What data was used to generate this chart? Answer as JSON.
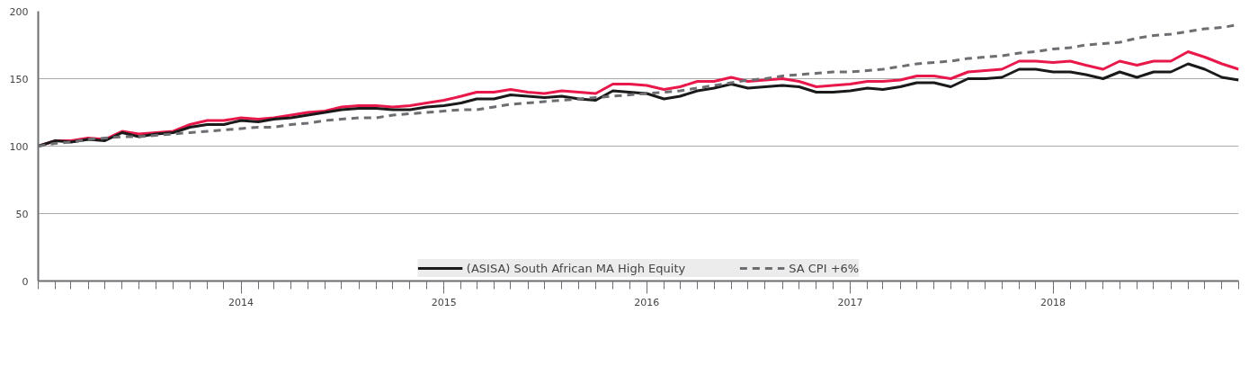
{
  "chart_data": {
    "type": "line",
    "x": [
      "2013-01",
      "2013-02",
      "2013-03",
      "2013-04",
      "2013-05",
      "2013-06",
      "2013-07",
      "2013-08",
      "2013-09",
      "2013-10",
      "2013-11",
      "2013-12",
      "2014-01",
      "2014-02",
      "2014-03",
      "2014-04",
      "2014-05",
      "2014-06",
      "2014-07",
      "2014-08",
      "2014-09",
      "2014-10",
      "2014-11",
      "2014-12",
      "2015-01",
      "2015-02",
      "2015-03",
      "2015-04",
      "2015-05",
      "2015-06",
      "2015-07",
      "2015-08",
      "2015-09",
      "2015-10",
      "2015-11",
      "2015-12",
      "2016-01",
      "2016-02",
      "2016-03",
      "2016-04",
      "2016-05",
      "2016-06",
      "2016-07",
      "2016-08",
      "2016-09",
      "2016-10",
      "2016-11",
      "2016-12",
      "2017-01",
      "2017-02",
      "2017-03",
      "2017-04",
      "2017-05",
      "2017-06",
      "2017-07",
      "2017-08",
      "2017-09",
      "2017-10",
      "2017-11",
      "2017-12",
      "2018-01",
      "2018-02",
      "2018-03",
      "2018-04",
      "2018-05",
      "2018-06",
      "2018-07",
      "2018-08",
      "2018-09",
      "2018-10",
      "2018-11",
      "2018-12"
    ],
    "series": [
      {
        "color": "#e8194a",
        "line_style": "solid",
        "values": [
          100,
          104,
          104,
          106,
          105,
          111,
          109,
          110,
          111,
          116,
          119,
          119,
          121,
          120,
          121,
          123,
          125,
          126,
          129,
          130,
          130,
          129,
          130,
          132,
          134,
          137,
          140,
          140,
          142,
          140,
          139,
          141,
          140,
          139,
          146,
          146,
          145,
          142,
          144,
          148,
          148,
          151,
          148,
          149,
          150,
          148,
          144,
          145,
          146,
          148,
          148,
          149,
          152,
          152,
          150,
          155,
          156,
          157,
          163,
          163,
          162,
          163,
          160,
          157,
          163,
          160,
          163,
          163,
          170,
          166,
          161,
          157
        ]
      },
      {
        "name": "(ASISA) South African MA High Equity",
        "color": "#1a1a1a",
        "line_style": "solid",
        "values": [
          100,
          104,
          103,
          105,
          104,
          110,
          107,
          109,
          110,
          114,
          116,
          116,
          119,
          118,
          120,
          121,
          123,
          125,
          127,
          128,
          128,
          127,
          127,
          129,
          130,
          132,
          135,
          135,
          138,
          137,
          136,
          137,
          135,
          134,
          141,
          140,
          139,
          135,
          137,
          141,
          143,
          146,
          143,
          144,
          145,
          144,
          140,
          140,
          141,
          143,
          142,
          144,
          147,
          147,
          144,
          150,
          150,
          151,
          157,
          157,
          155,
          155,
          153,
          150,
          155,
          151,
          155,
          155,
          161,
          157,
          151,
          149
        ]
      },
      {
        "name": "SA CPI +6%",
        "color": "#6d6e71",
        "line_style": "dashed",
        "values": [
          100,
          102,
          103,
          105,
          106,
          107,
          107,
          108,
          109,
          110,
          111,
          112,
          113,
          114,
          114,
          116,
          117,
          119,
          120,
          121,
          121,
          123,
          124,
          125,
          126,
          127,
          127,
          129,
          131,
          132,
          133,
          134,
          135,
          136,
          137,
          138,
          139,
          140,
          141,
          143,
          145,
          147,
          149,
          150,
          152,
          153,
          154,
          155,
          155,
          156,
          157,
          159,
          161,
          162,
          163,
          165,
          166,
          167,
          169,
          170,
          172,
          173,
          175,
          176,
          177,
          180,
          182,
          183,
          185,
          187,
          188,
          190
        ]
      }
    ],
    "xlim": [
      "2013-01",
      "2018-12"
    ],
    "xticks": [
      {
        "value": "2013-01",
        "label": null
      },
      {
        "value": "2013-02",
        "label": null
      },
      {
        "value": "2013-03",
        "label": null
      },
      {
        "value": "2013-04",
        "label": null
      },
      {
        "value": "2013-05",
        "label": null
      },
      {
        "value": "2013-06",
        "label": null
      },
      {
        "value": "2013-07",
        "label": null
      },
      {
        "value": "2013-08",
        "label": null
      },
      {
        "value": "2013-09",
        "label": null
      },
      {
        "value": "2013-10",
        "label": null
      },
      {
        "value": "2013-11",
        "label": null
      },
      {
        "value": "2013-12",
        "label": null
      },
      {
        "value": "2014-01",
        "label": "2014"
      },
      {
        "value": "2014-02",
        "label": null
      },
      {
        "value": "2014-03",
        "label": null
      },
      {
        "value": "2014-04",
        "label": null
      },
      {
        "value": "2014-05",
        "label": null
      },
      {
        "value": "2014-06",
        "label": null
      },
      {
        "value": "2014-07",
        "label": null
      },
      {
        "value": "2014-08",
        "label": null
      },
      {
        "value": "2014-09",
        "label": null
      },
      {
        "value": "2014-10",
        "label": null
      },
      {
        "value": "2014-11",
        "label": null
      },
      {
        "value": "2014-12",
        "label": null
      },
      {
        "value": "2015-01",
        "label": "2015"
      },
      {
        "value": "2015-02",
        "label": null
      },
      {
        "value": "2015-03",
        "label": null
      },
      {
        "value": "2015-04",
        "label": null
      },
      {
        "value": "2015-05",
        "label": null
      },
      {
        "value": "2015-06",
        "label": null
      },
      {
        "value": "2015-07",
        "label": null
      },
      {
        "value": "2015-08",
        "label": null
      },
      {
        "value": "2015-09",
        "label": null
      },
      {
        "value": "2015-10",
        "label": null
      },
      {
        "value": "2015-11",
        "label": null
      },
      {
        "value": "2015-12",
        "label": null
      },
      {
        "value": "2016-01",
        "label": "2016"
      },
      {
        "value": "2016-02",
        "label": null
      },
      {
        "value": "2016-03",
        "label": null
      },
      {
        "value": "2016-04",
        "label": null
      },
      {
        "value": "2016-05",
        "label": null
      },
      {
        "value": "2016-06",
        "label": null
      },
      {
        "value": "2016-07",
        "label": null
      },
      {
        "value": "2016-08",
        "label": null
      },
      {
        "value": "2016-09",
        "label": null
      },
      {
        "value": "2016-10",
        "label": null
      },
      {
        "value": "2016-11",
        "label": null
      },
      {
        "value": "2016-12",
        "label": null
      },
      {
        "value": "2017-01",
        "label": "2017"
      },
      {
        "value": "2017-02",
        "label": null
      },
      {
        "value": "2017-03",
        "label": null
      },
      {
        "value": "2017-04",
        "label": null
      },
      {
        "value": "2017-05",
        "label": null
      },
      {
        "value": "2017-06",
        "label": null
      },
      {
        "value": "2017-07",
        "label": null
      },
      {
        "value": "2017-08",
        "label": null
      },
      {
        "value": "2017-09",
        "label": null
      },
      {
        "value": "2017-10",
        "label": null
      },
      {
        "value": "2017-11",
        "label": null
      },
      {
        "value": "2017-12",
        "label": null
      },
      {
        "value": "2018-01",
        "label": "2018"
      },
      {
        "value": "2018-02",
        "label": null
      },
      {
        "value": "2018-03",
        "label": null
      },
      {
        "value": "2018-04",
        "label": null
      },
      {
        "value": "2018-05",
        "label": null
      },
      {
        "value": "2018-06",
        "label": null
      },
      {
        "value": "2018-07",
        "label": null
      },
      {
        "value": "2018-08",
        "label": null
      },
      {
        "value": "2018-09",
        "label": null
      },
      {
        "value": "2018-10",
        "label": null
      },
      {
        "value": "2018-11",
        "label": null
      },
      {
        "value": "2018-12",
        "label": null
      }
    ],
    "ylim": [
      0,
      200
    ],
    "yticks": [
      0,
      50,
      100,
      150,
      200
    ],
    "grid": "y",
    "legend": "bottom"
  }
}
